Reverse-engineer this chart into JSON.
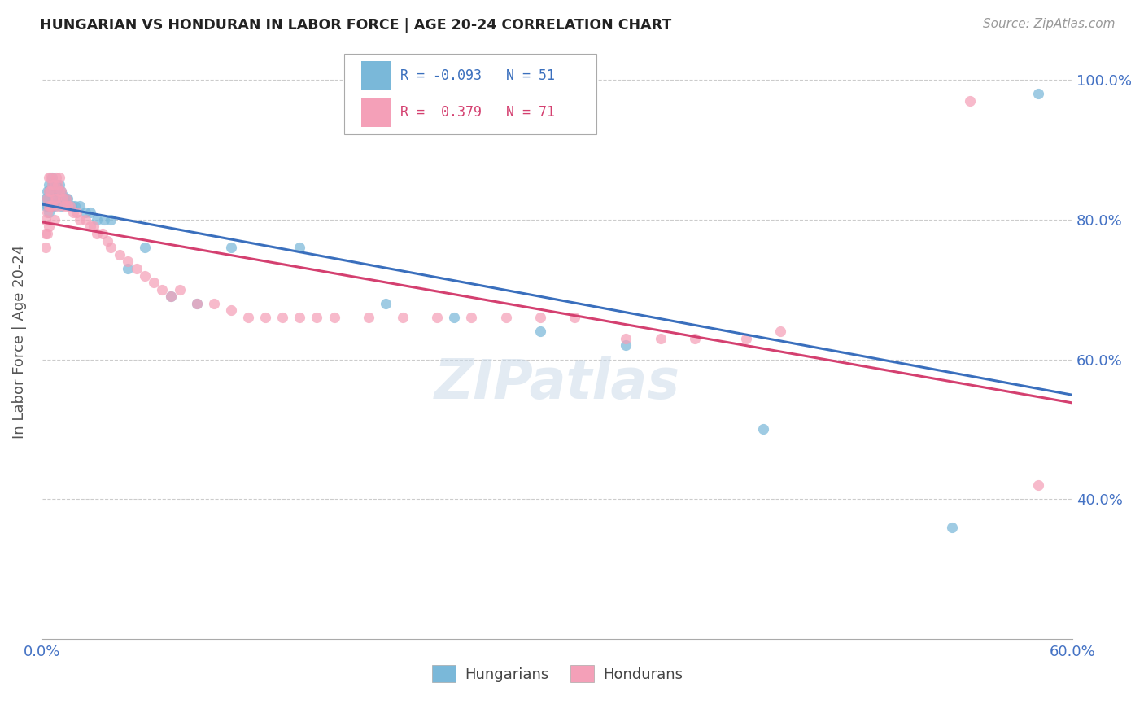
{
  "title": "HUNGARIAN VS HONDURAN IN LABOR FORCE | AGE 20-24 CORRELATION CHART",
  "source": "Source: ZipAtlas.com",
  "ylabel_label": "In Labor Force | Age 20-24",
  "xmin": 0.0,
  "xmax": 0.6,
  "ymin": 0.2,
  "ymax": 1.05,
  "xticks": [
    0.0,
    0.1,
    0.2,
    0.3,
    0.4,
    0.5,
    0.6
  ],
  "xticklabels": [
    "0.0%",
    "",
    "",
    "",
    "",
    "",
    "60.0%"
  ],
  "yticks": [
    0.4,
    0.6,
    0.8,
    1.0
  ],
  "yticklabels": [
    "40.0%",
    "60.0%",
    "80.0%",
    "100.0%"
  ],
  "r_hungarian": -0.093,
  "n_hungarian": 51,
  "r_honduran": 0.379,
  "n_honduran": 71,
  "color_hungarian": "#7ab8d9",
  "color_honduran": "#f4a0b8",
  "line_color_hungarian": "#3a6fbd",
  "line_color_honduran": "#d44070",
  "watermark": "ZIPatlas",
  "hung_x": [
    0.002,
    0.002,
    0.003,
    0.003,
    0.003,
    0.004,
    0.004,
    0.004,
    0.004,
    0.004,
    0.005,
    0.005,
    0.006,
    0.006,
    0.006,
    0.006,
    0.007,
    0.007,
    0.008,
    0.008,
    0.009,
    0.009,
    0.01,
    0.01,
    0.011,
    0.011,
    0.012,
    0.013,
    0.014,
    0.015,
    0.017,
    0.019,
    0.022,
    0.025,
    0.028,
    0.032,
    0.036,
    0.04,
    0.05,
    0.06,
    0.075,
    0.09,
    0.11,
    0.15,
    0.2,
    0.24,
    0.29,
    0.34,
    0.42,
    0.53,
    0.58
  ],
  "hung_y": [
    0.83,
    0.82,
    0.84,
    0.83,
    0.82,
    0.85,
    0.84,
    0.83,
    0.82,
    0.81,
    0.84,
    0.82,
    0.86,
    0.85,
    0.84,
    0.82,
    0.84,
    0.82,
    0.85,
    0.83,
    0.845,
    0.825,
    0.85,
    0.83,
    0.84,
    0.82,
    0.835,
    0.83,
    0.83,
    0.83,
    0.82,
    0.82,
    0.82,
    0.81,
    0.81,
    0.8,
    0.8,
    0.8,
    0.73,
    0.76,
    0.69,
    0.68,
    0.76,
    0.76,
    0.68,
    0.66,
    0.64,
    0.62,
    0.5,
    0.36,
    0.98
  ],
  "hond_x": [
    0.002,
    0.002,
    0.002,
    0.003,
    0.003,
    0.003,
    0.004,
    0.004,
    0.004,
    0.004,
    0.005,
    0.005,
    0.005,
    0.006,
    0.006,
    0.007,
    0.007,
    0.007,
    0.008,
    0.008,
    0.009,
    0.009,
    0.01,
    0.01,
    0.011,
    0.012,
    0.013,
    0.014,
    0.015,
    0.016,
    0.018,
    0.02,
    0.022,
    0.025,
    0.028,
    0.03,
    0.032,
    0.035,
    0.038,
    0.04,
    0.045,
    0.05,
    0.055,
    0.06,
    0.065,
    0.07,
    0.075,
    0.08,
    0.09,
    0.1,
    0.11,
    0.12,
    0.13,
    0.14,
    0.15,
    0.16,
    0.17,
    0.19,
    0.21,
    0.23,
    0.25,
    0.27,
    0.29,
    0.31,
    0.34,
    0.36,
    0.38,
    0.41,
    0.43,
    0.54,
    0.58
  ],
  "hond_y": [
    0.8,
    0.78,
    0.76,
    0.83,
    0.81,
    0.78,
    0.86,
    0.84,
    0.82,
    0.79,
    0.86,
    0.84,
    0.82,
    0.85,
    0.82,
    0.85,
    0.83,
    0.8,
    0.86,
    0.83,
    0.85,
    0.82,
    0.86,
    0.84,
    0.84,
    0.83,
    0.82,
    0.83,
    0.82,
    0.82,
    0.81,
    0.81,
    0.8,
    0.8,
    0.79,
    0.79,
    0.78,
    0.78,
    0.77,
    0.76,
    0.75,
    0.74,
    0.73,
    0.72,
    0.71,
    0.7,
    0.69,
    0.7,
    0.68,
    0.68,
    0.67,
    0.66,
    0.66,
    0.66,
    0.66,
    0.66,
    0.66,
    0.66,
    0.66,
    0.66,
    0.66,
    0.66,
    0.66,
    0.66,
    0.63,
    0.63,
    0.63,
    0.63,
    0.64,
    0.97,
    0.42
  ]
}
